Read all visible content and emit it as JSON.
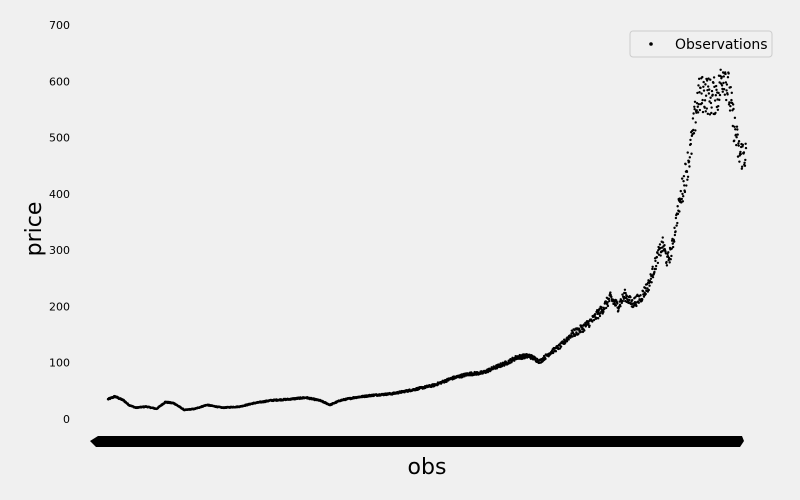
{
  "chart_data": {
    "type": "scatter",
    "title": "",
    "xlabel": "obs",
    "ylabel": "price",
    "ylim": [
      -40,
      700
    ],
    "yticks": [
      0,
      100,
      200,
      300,
      400,
      500,
      600,
      700
    ],
    "grid": false,
    "legend": {
      "position": "top-right",
      "entries": [
        "Observations"
      ]
    },
    "marker_color": "#000000",
    "background_color": "#f0f0f0",
    "x_ticklabels_note_hidden": true,
    "series": [
      {
        "name": "Observations",
        "anchors": [
          [
            0,
            35
          ],
          [
            20,
            40
          ],
          [
            45,
            33
          ],
          [
            60,
            25
          ],
          [
            80,
            20
          ],
          [
            110,
            22
          ],
          [
            140,
            18
          ],
          [
            165,
            30
          ],
          [
            190,
            28
          ],
          [
            220,
            16
          ],
          [
            250,
            18
          ],
          [
            285,
            25
          ],
          [
            330,
            20
          ],
          [
            380,
            22
          ],
          [
            420,
            28
          ],
          [
            470,
            33
          ],
          [
            520,
            35
          ],
          [
            570,
            38
          ],
          [
            610,
            33
          ],
          [
            640,
            25
          ],
          [
            670,
            33
          ],
          [
            710,
            38
          ],
          [
            760,
            42
          ],
          [
            820,
            45
          ],
          [
            880,
            52
          ],
          [
            940,
            60
          ],
          [
            990,
            72
          ],
          [
            1040,
            80
          ],
          [
            1080,
            82
          ],
          [
            1110,
            90
          ],
          [
            1150,
            100
          ],
          [
            1180,
            110
          ],
          [
            1215,
            112
          ],
          [
            1245,
            102
          ],
          [
            1275,
            118
          ],
          [
            1305,
            130
          ],
          [
            1335,
            150
          ],
          [
            1365,
            160
          ],
          [
            1395,
            175
          ],
          [
            1425,
            195
          ],
          [
            1448,
            215
          ],
          [
            1470,
            200
          ],
          [
            1490,
            220
          ],
          [
            1510,
            205
          ],
          [
            1535,
            215
          ],
          [
            1560,
            240
          ],
          [
            1585,
            290
          ],
          [
            1600,
            310
          ],
          [
            1612,
            280
          ],
          [
            1625,
            300
          ],
          [
            1640,
            360
          ],
          [
            1660,
            420
          ],
          [
            1680,
            480
          ],
          [
            1700,
            570
          ],
          [
            1720,
            580
          ],
          [
            1740,
            570
          ],
          [
            1760,
            580
          ],
          [
            1775,
            620
          ],
          [
            1790,
            580
          ],
          [
            1805,
            520
          ],
          [
            1820,
            470
          ],
          [
            1838,
            470
          ]
        ],
        "n_points": 1840
      }
    ]
  }
}
